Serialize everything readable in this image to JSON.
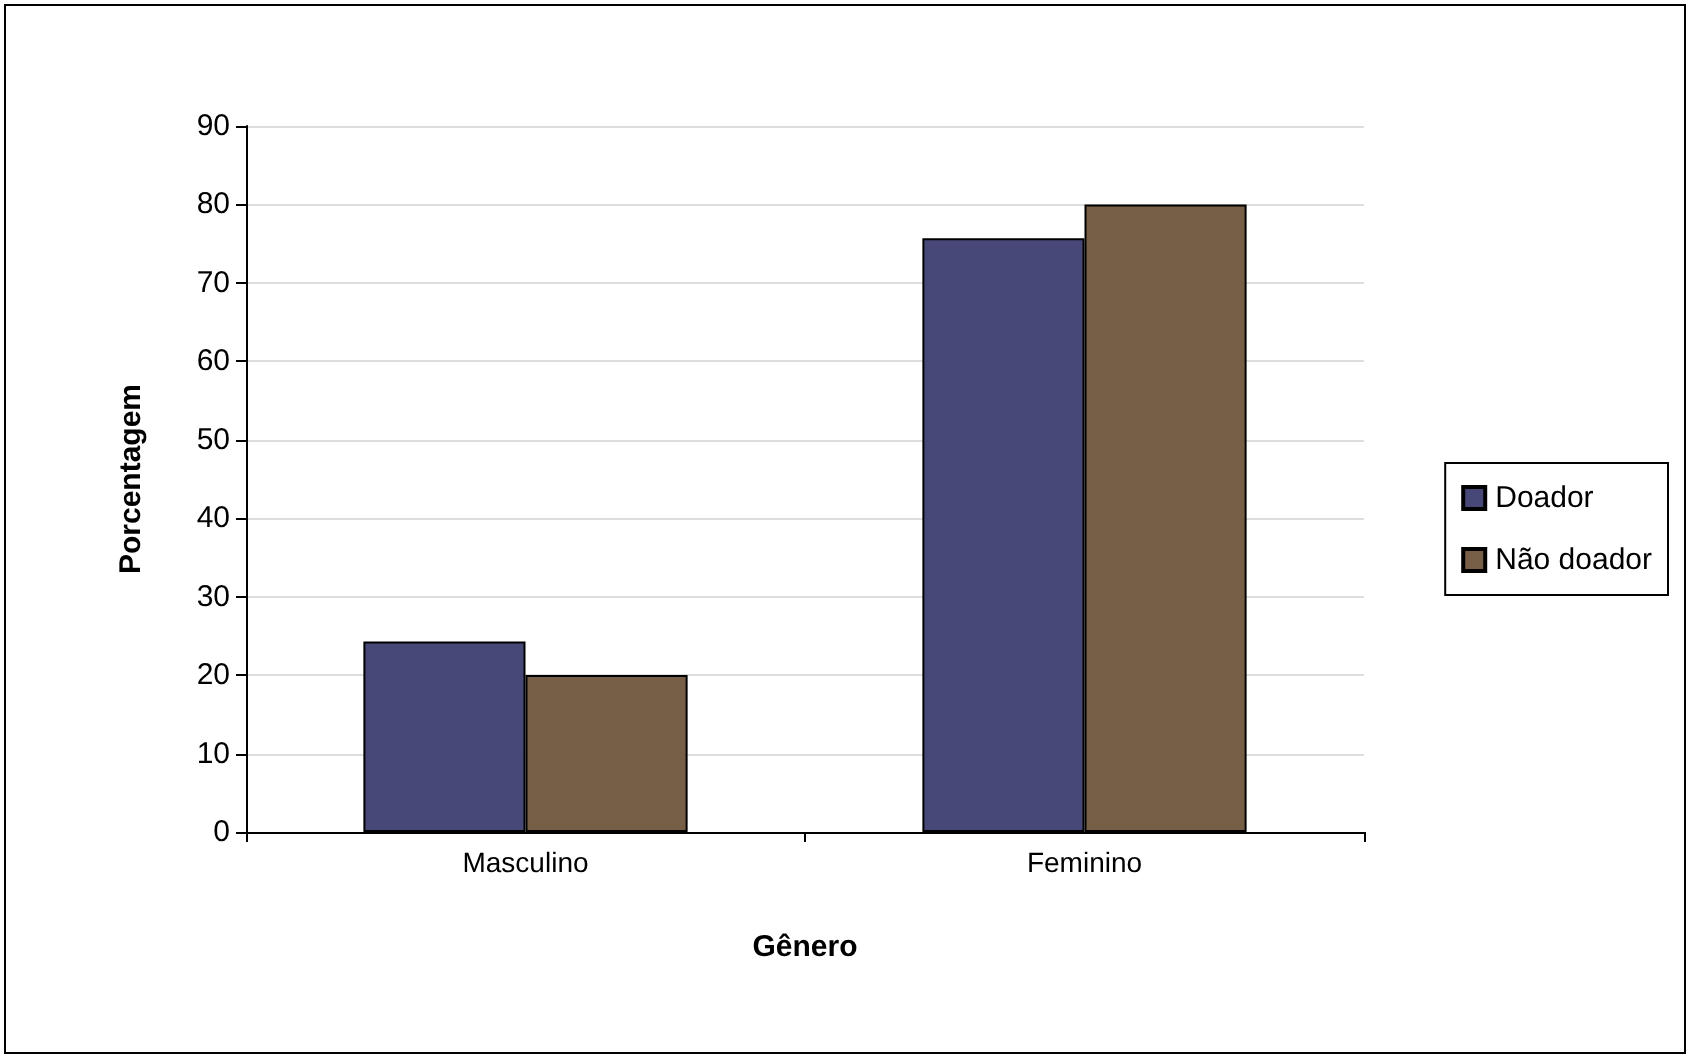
{
  "chart_data": {
    "type": "bar",
    "xlabel": "Gênero",
    "ylabel": "Porcentagem",
    "categories": [
      "Masculino",
      "Feminino"
    ],
    "series": [
      {
        "name": "Doador",
        "color": "#474878",
        "values": [
          24.3,
          75.7
        ]
      },
      {
        "name": "Não doador",
        "color": "#775f47",
        "values": [
          20,
          80
        ]
      }
    ],
    "ylim": [
      0,
      90
    ],
    "yticks": [
      0,
      10,
      20,
      30,
      40,
      50,
      60,
      70,
      80,
      90
    ],
    "grid": "y",
    "legend": "right"
  }
}
